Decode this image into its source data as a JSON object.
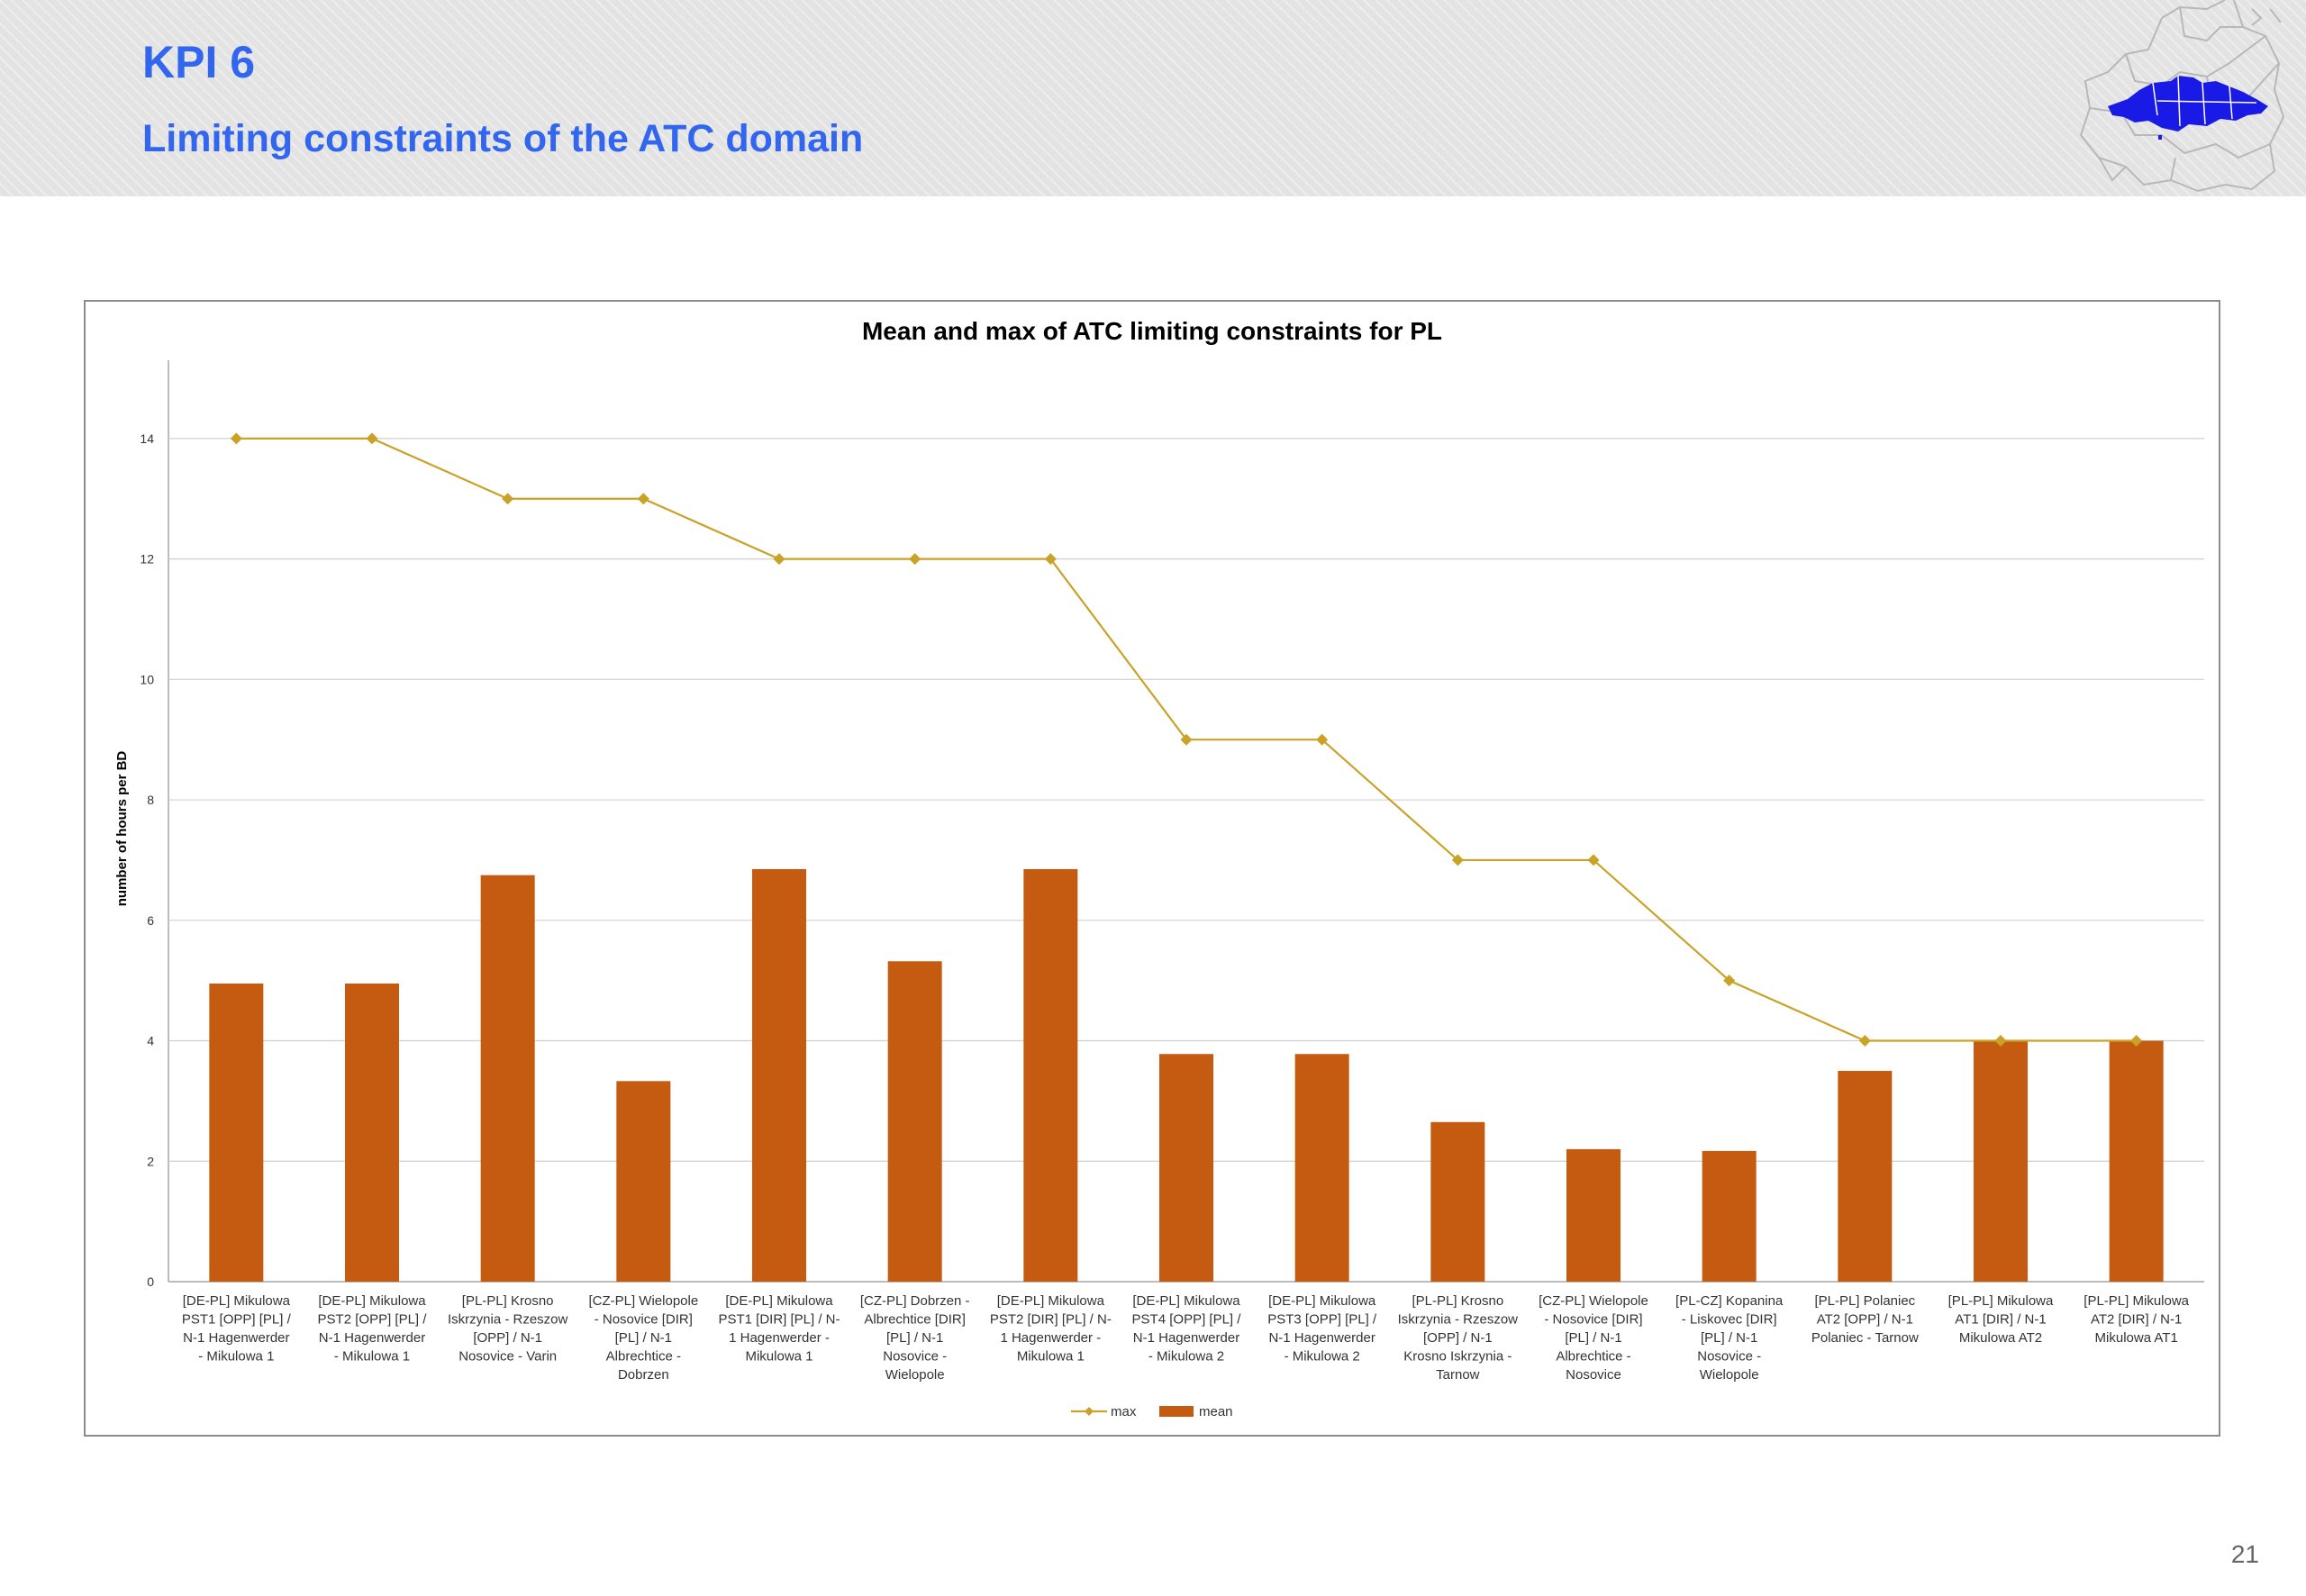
{
  "slide": {
    "title": "KPI 6",
    "subtitle": "Limiting constraints of the ATC domain",
    "page_number": "21",
    "accent_color": "#3366ee",
    "logo_icon": "europe-map-logo-icon"
  },
  "chart_data": {
    "type": "bar",
    "title": "Mean and max of ATC limiting constraints for PL",
    "xlabel": "",
    "ylabel": "number of hours per BD",
    "ylim": [
      0,
      15
    ],
    "yticks": [
      0,
      2,
      4,
      6,
      8,
      10,
      12,
      14
    ],
    "grid": true,
    "legend_position": "bottom",
    "categories": [
      [
        "[DE-PL] Mikulowa",
        "PST1 [OPP] [PL] /",
        "N-1 Hagenwerder",
        "- Mikulowa 1"
      ],
      [
        "[DE-PL] Mikulowa",
        "PST2 [OPP] [PL] /",
        "N-1 Hagenwerder",
        "- Mikulowa 1"
      ],
      [
        "[PL-PL] Krosno",
        "Iskrzynia - Rzeszow",
        "[OPP] / N-1",
        "Nosovice - Varin"
      ],
      [
        "[CZ-PL] Wielopole",
        "- Nosovice [DIR]",
        "[PL] / N-1",
        "Albrechtice -",
        "Dobrzen"
      ],
      [
        "[DE-PL] Mikulowa",
        "PST1 [DIR] [PL] / N-",
        "1 Hagenwerder -",
        "Mikulowa 1"
      ],
      [
        "[CZ-PL] Dobrzen -",
        "Albrechtice [DIR]",
        "[PL] / N-1",
        "Nosovice -",
        "Wielopole"
      ],
      [
        "[DE-PL] Mikulowa",
        "PST2 [DIR] [PL] / N-",
        "1 Hagenwerder -",
        "Mikulowa 1"
      ],
      [
        "[DE-PL] Mikulowa",
        "PST4 [OPP] [PL] /",
        "N-1 Hagenwerder",
        "- Mikulowa 2"
      ],
      [
        "[DE-PL] Mikulowa",
        "PST3 [OPP] [PL] /",
        "N-1 Hagenwerder",
        "- Mikulowa 2"
      ],
      [
        "[PL-PL] Krosno",
        "Iskrzynia - Rzeszow",
        "[OPP] / N-1",
        "Krosno Iskrzynia -",
        "Tarnow"
      ],
      [
        "[CZ-PL] Wielopole",
        "- Nosovice [DIR]",
        "[PL] / N-1",
        "Albrechtice -",
        "Nosovice"
      ],
      [
        "[PL-CZ] Kopanina",
        "- Liskovec [DIR]",
        "[PL] / N-1",
        "Nosovice -",
        "Wielopole"
      ],
      [
        "[PL-PL] Polaniec",
        "AT2 [OPP] / N-1",
        "Polaniec - Tarnow"
      ],
      [
        "[PL-PL] Mikulowa",
        "AT1 [DIR] / N-1",
        "Mikulowa AT2"
      ],
      [
        "[PL-PL] Mikulowa",
        "AT2 [DIR] / N-1",
        "Mikulowa AT1"
      ]
    ],
    "series": [
      {
        "name": "max",
        "type": "line",
        "color": "#c9a227",
        "values": [
          14,
          14,
          13,
          13,
          12,
          12,
          12,
          9,
          9,
          7,
          7,
          5,
          4,
          4,
          4
        ]
      },
      {
        "name": "mean",
        "type": "bar",
        "color": "#c55a11",
        "values": [
          4.95,
          4.95,
          6.75,
          3.33,
          6.85,
          5.32,
          6.85,
          3.78,
          3.78,
          2.65,
          2.2,
          2.17,
          3.5,
          4.0,
          4.0
        ]
      }
    ]
  }
}
